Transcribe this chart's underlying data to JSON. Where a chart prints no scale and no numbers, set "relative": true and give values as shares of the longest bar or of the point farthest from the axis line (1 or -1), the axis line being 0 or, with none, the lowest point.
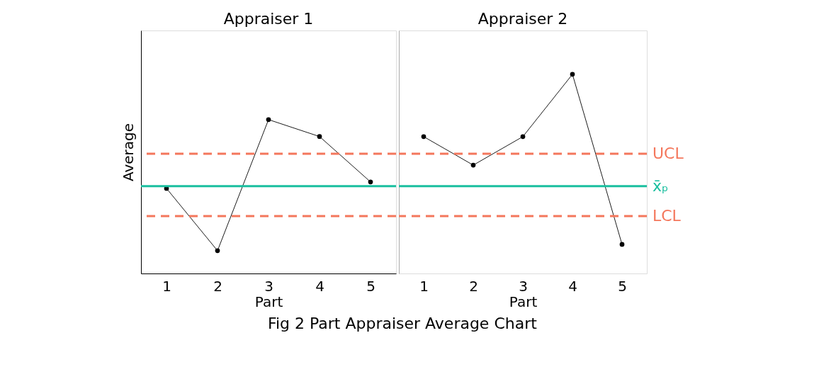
{
  "chart_data": [
    {
      "type": "line",
      "title": "Appraiser 1",
      "xlabel": "Part",
      "ylabel": "Average",
      "categories": [
        "1",
        "2",
        "3",
        "4",
        "5"
      ],
      "values": [
        0.553,
        0.148,
        1,
        0.89,
        0.595
      ],
      "color": "#000000",
      "relative": true,
      "marker": "circle",
      "tick_labels": "x",
      "ref_lines": [
        {
          "axis": "y",
          "value": 0.778,
          "label": null,
          "color": "#f4775c",
          "line_style": "dashed"
        },
        {
          "axis": "y",
          "value": 0.567,
          "label": null,
          "color": "#1abf9f",
          "line_style": "solid"
        },
        {
          "axis": "y",
          "value": 0.373,
          "label": null,
          "color": "#f4775c",
          "line_style": "dashed"
        }
      ]
    },
    {
      "type": "line",
      "title": "Appraiser 2",
      "xlabel": "Part",
      "categories": [
        "1",
        "2",
        "3",
        "4",
        "5"
      ],
      "values": [
        0.687,
        0.544,
        0.687,
        1,
        0.146
      ],
      "color": "#000000",
      "relative": true,
      "marker": "circle",
      "tick_labels": "x",
      "ref_lines": [
        {
          "axis": "y",
          "value": 0.601,
          "label": "UCL",
          "color": "#f4775c",
          "line_style": "dashed"
        },
        {
          "axis": "y",
          "value": 0.438,
          "label": "x̄ₚ",
          "color": "#1abf9f",
          "line_style": "solid"
        },
        {
          "axis": "y",
          "value": 0.288,
          "label": "LCL",
          "color": "#f4775c",
          "line_style": "dashed"
        }
      ],
      "annotations": [
        "Fig 2 Part Appraiser Average Chart"
      ]
    }
  ]
}
